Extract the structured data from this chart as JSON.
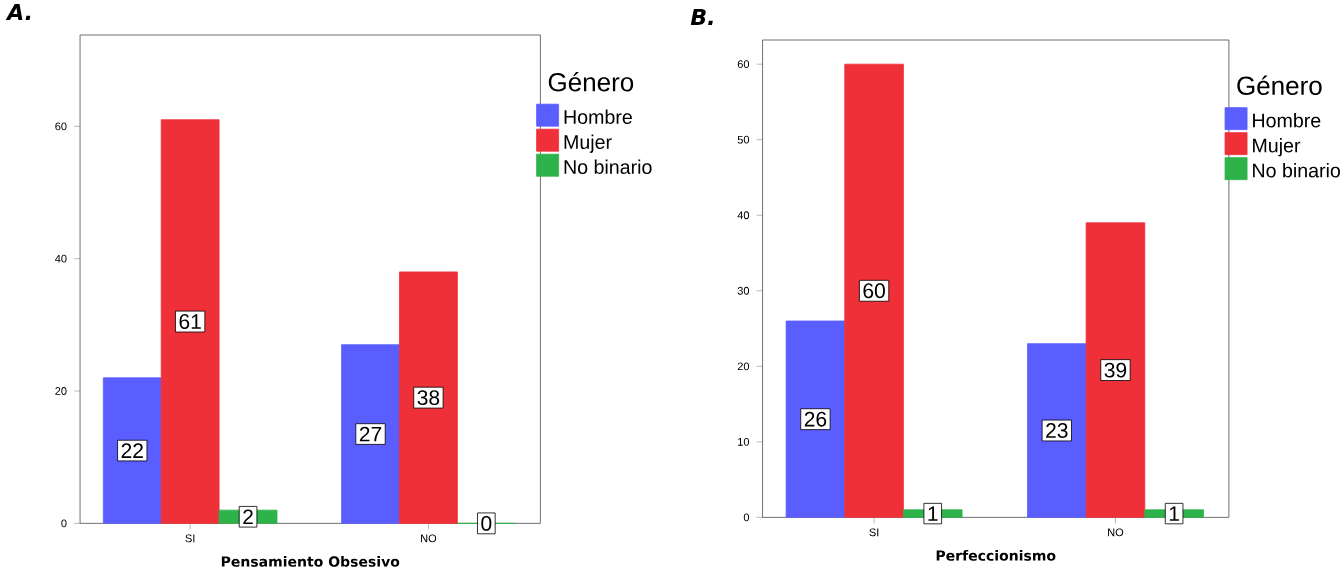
{
  "chart_data": [
    {
      "type": "bar",
      "title": "A.",
      "xlabel": "Pensamiento Obsesivo",
      "legend_title": "Género",
      "legend": "right",
      "data_labels": true,
      "categories": [
        "SI",
        "NO"
      ],
      "ylim": [
        0,
        73.8
      ],
      "yticks": [
        0,
        20,
        40,
        60
      ],
      "series": [
        {
          "name": "Hombre",
          "color": "#5b5eff",
          "values": [
            22,
            27
          ]
        },
        {
          "name": "Mujer",
          "color": "#ef3038",
          "values": [
            61,
            38
          ]
        },
        {
          "name": "No binario",
          "color": "#2db34a",
          "values": [
            2,
            0
          ]
        }
      ]
    },
    {
      "type": "bar",
      "title": "B.",
      "xlabel": "Perfeccionismo",
      "legend_title": "Género",
      "legend": "right",
      "data_labels": true,
      "categories": [
        "SI",
        "NO"
      ],
      "ylim": [
        0,
        63.2
      ],
      "yticks": [
        0,
        10,
        20,
        30,
        40,
        50,
        60
      ],
      "series": [
        {
          "name": "Hombre",
          "color": "#5b5eff",
          "values": [
            26,
            23
          ]
        },
        {
          "name": "Mujer",
          "color": "#ef3038",
          "values": [
            60,
            39
          ]
        },
        {
          "name": "No binario",
          "color": "#2db34a",
          "values": [
            1,
            1
          ]
        }
      ]
    }
  ]
}
